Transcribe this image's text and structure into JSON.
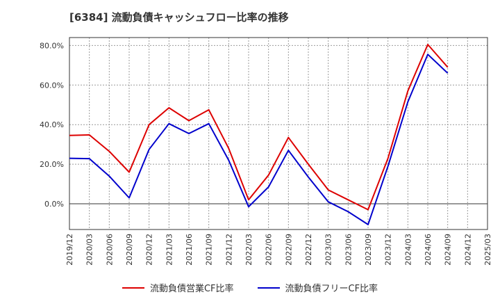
{
  "title": "[6384]  流動負債キャッシュフロー比率の推移",
  "colors": {
    "operating": "#dd0000",
    "free": "#0000cc"
  },
  "chart_data": {
    "type": "line",
    "title": "[6384]  流動負債キャッシュフロー比率の推移",
    "xlabel": "",
    "ylabel": "",
    "ylim": [
      -13,
      84
    ],
    "yticks": [
      0,
      20,
      40,
      60,
      80
    ],
    "ytick_labels": [
      "0.0%",
      "20.0%",
      "40.0%",
      "60.0%",
      "80.0%"
    ],
    "x_tick_labels": [
      "2019/12",
      "2020/03",
      "2020/06",
      "2020/09",
      "2020/12",
      "2021/03",
      "2021/06",
      "2021/09",
      "2021/12",
      "2022/03",
      "2022/06",
      "2022/09",
      "2022/12",
      "2023/03",
      "2023/06",
      "2023/09",
      "2023/12",
      "2024/03",
      "2024/06",
      "2024/09",
      "2024/12",
      "2025/03"
    ],
    "grid": true,
    "legend_position": "bottom",
    "series": [
      {
        "name": "流動負債営業CF比率",
        "color": "#dd0000",
        "values": [
          34.5,
          34.8,
          26.5,
          16.0,
          40.0,
          48.5,
          42.0,
          47.5,
          28.0,
          2.0,
          14.5,
          33.5,
          20.0,
          7.0,
          2.0,
          -3.0,
          23.0,
          57.0,
          80.5,
          69.0,
          null,
          null
        ]
      },
      {
        "name": "流動負債フリーCF比率",
        "color": "#0000cc",
        "values": [
          23.0,
          22.8,
          14.0,
          3.0,
          27.5,
          40.5,
          35.5,
          40.5,
          22.0,
          -1.5,
          8.5,
          27.0,
          13.5,
          1.0,
          -4.0,
          -10.5,
          19.0,
          51.5,
          75.5,
          66.0,
          null,
          null
        ]
      }
    ]
  }
}
